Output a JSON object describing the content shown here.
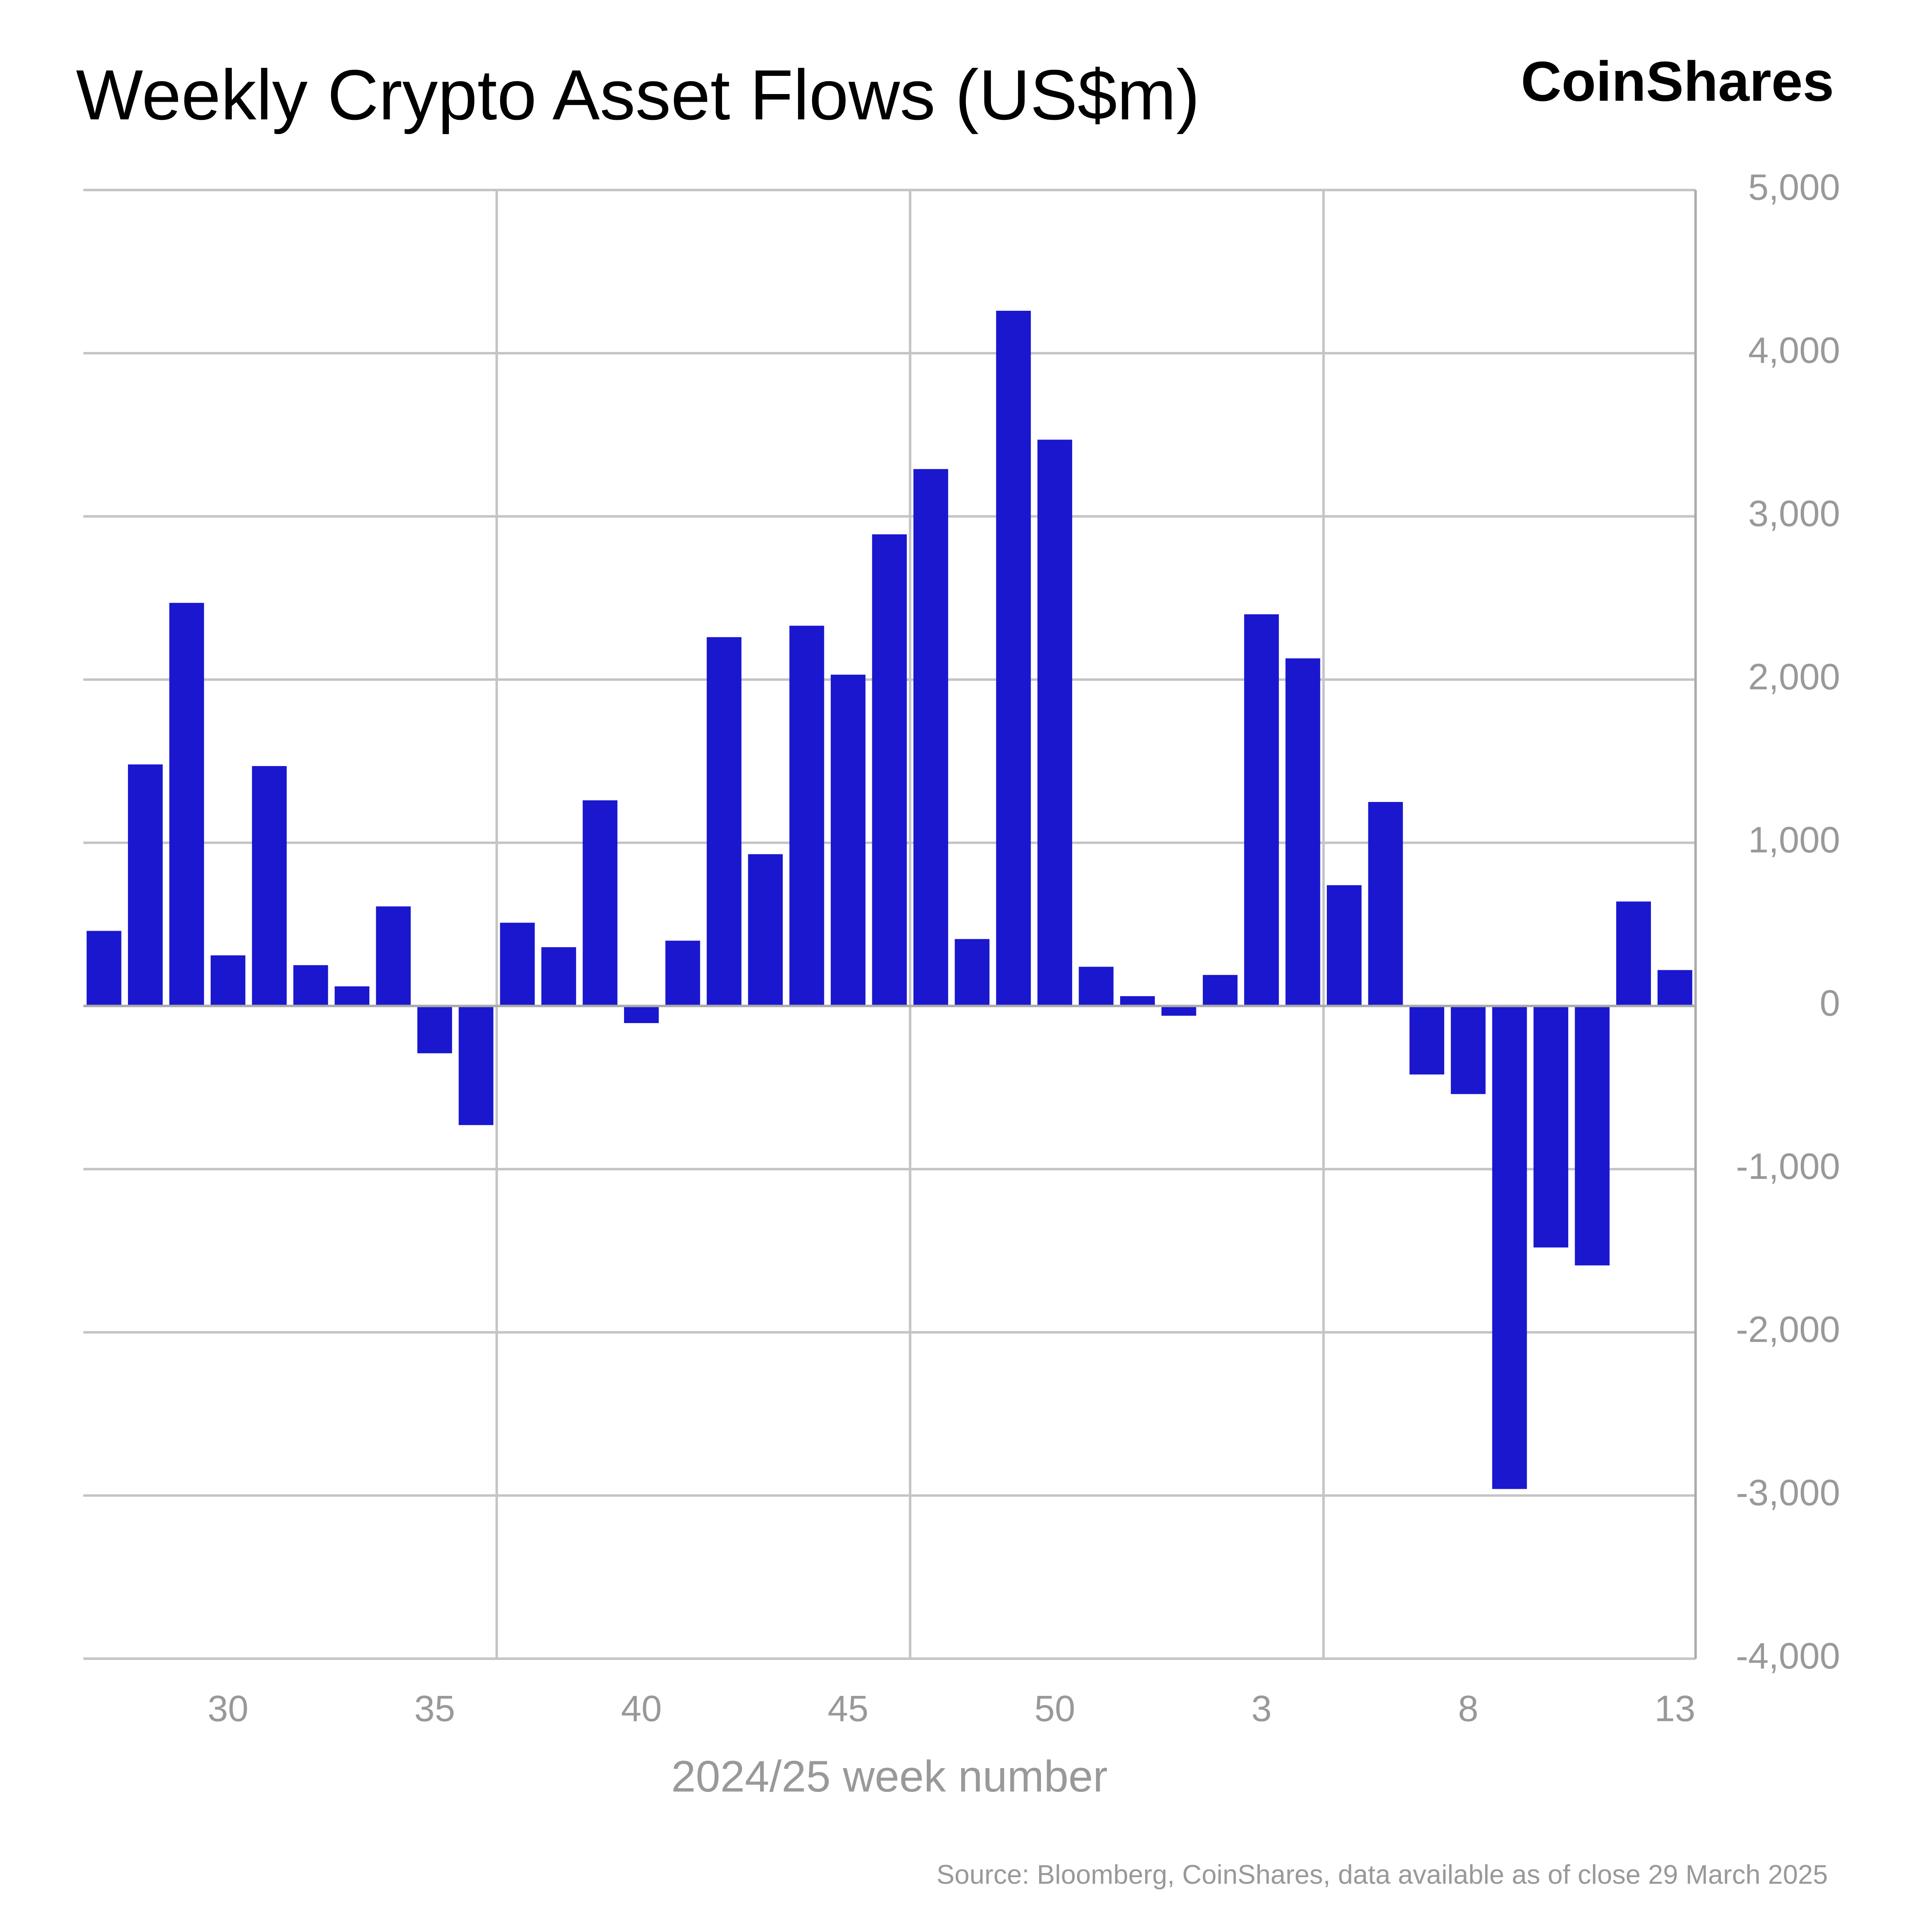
{
  "chart_data": {
    "type": "bar",
    "title": "Weekly Crypto Asset Flows (US$m)",
    "brand": "CoinShares",
    "x_label": "2024/25 week number",
    "source": "Source: Bloomberg, CoinShares, data available as of close 29 March 2025",
    "categories": [
      null,
      null,
      null,
      "30",
      null,
      null,
      null,
      null,
      "35",
      null,
      null,
      null,
      null,
      "40",
      null,
      null,
      null,
      null,
      "45",
      null,
      null,
      null,
      null,
      "50",
      null,
      null,
      null,
      null,
      "3",
      null,
      null,
      null,
      null,
      "8",
      null,
      null,
      null,
      null,
      "13"
    ],
    "values": [
      460,
      1480,
      2470,
      310,
      1470,
      250,
      120,
      610,
      -290,
      -730,
      510,
      360,
      1260,
      -105,
      400,
      2260,
      930,
      2330,
      2030,
      2890,
      3290,
      410,
      4260,
      3470,
      240,
      60,
      -60,
      190,
      2400,
      2130,
      740,
      1250,
      -420,
      -540,
      -2960,
      -1480,
      -1590,
      640,
      220
    ],
    "color": "#1a17cf",
    "ylim": [
      -4000,
      5000
    ],
    "yticks": [
      {
        "value": -4000,
        "label": "-4,000"
      },
      {
        "value": -3000,
        "label": "-3,000"
      },
      {
        "value": -2000,
        "label": "-2,000"
      },
      {
        "value": -1000,
        "label": "-1,000"
      },
      0,
      {
        "value": 1000,
        "label": "1,000"
      },
      {
        "value": 2000,
        "label": "2,000"
      },
      {
        "value": 3000,
        "label": "3,000"
      },
      {
        "value": 4000,
        "label": "4,000"
      },
      {
        "value": 5000,
        "label": "5,000"
      }
    ],
    "grid": true,
    "y_axis_side": "right"
  }
}
